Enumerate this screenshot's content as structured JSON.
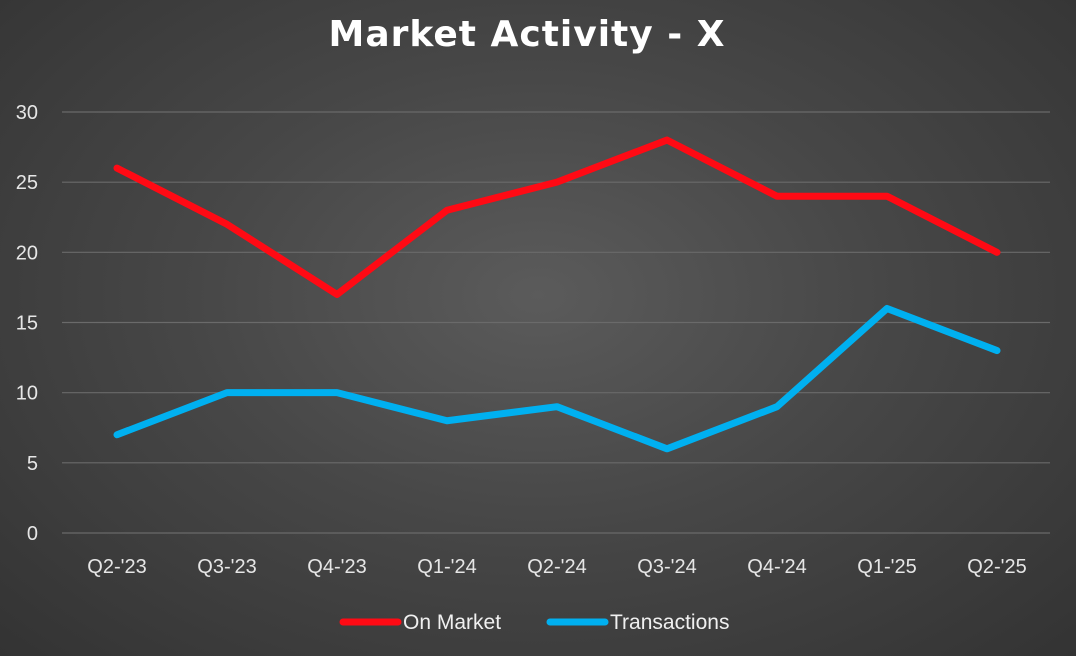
{
  "chart_data": {
    "type": "line",
    "title": "Market Activity - X",
    "xlabel": "",
    "ylabel": "",
    "categories": [
      "Q2-'23",
      "Q3-'23",
      "Q4-'23",
      "Q1-'24",
      "Q2-'24",
      "Q3-'24",
      "Q4-'24",
      "Q1-'25",
      "Q2-'25"
    ],
    "series": [
      {
        "name": "On Market",
        "color": "#ff0a14",
        "values": [
          26,
          22,
          17,
          23,
          25,
          28,
          24,
          24,
          20
        ]
      },
      {
        "name": "Transactions",
        "color": "#00b0f0",
        "values": [
          7,
          10,
          10,
          8,
          9,
          6,
          9,
          16,
          13
        ]
      }
    ],
    "ylim": [
      0,
      30
    ],
    "yticks": [
      0,
      5,
      10,
      15,
      20,
      25,
      30
    ],
    "grid": true,
    "legend_position": "bottom"
  }
}
